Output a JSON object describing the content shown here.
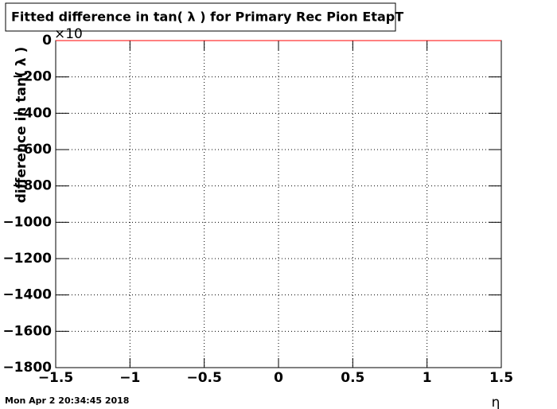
{
  "chart_data": {
    "type": "line",
    "title": "Fitted difference in tan( λ ) for Primary Rec Pion EtapT",
    "x_label": "η",
    "y_label": "difference  in tan( λ )",
    "y_exponent_label": "×10",
    "timestamp": "Mon Apr  2 20:34:45 2018",
    "x": [
      -1.5,
      1.5
    ],
    "series": [
      {
        "color": "#ff0000",
        "values": [
          0,
          0
        ]
      }
    ],
    "xlim": [
      -1.5,
      1.5
    ],
    "ylim": [
      -1800,
      0
    ],
    "xticks": [
      {
        "value": -1.5,
        "label": "−1.5"
      },
      {
        "value": -1,
        "label": "−1"
      },
      {
        "value": -0.5,
        "label": "−0.5"
      },
      0,
      0.5,
      1,
      1.5
    ],
    "yticks": [
      0,
      {
        "value": -200,
        "label": "−200"
      },
      {
        "value": -400,
        "label": "−400"
      },
      {
        "value": -600,
        "label": "−600"
      },
      {
        "value": -800,
        "label": "−800"
      },
      {
        "value": -1000,
        "label": "−1000"
      },
      {
        "value": -1200,
        "label": "−1200"
      },
      {
        "value": -1400,
        "label": "−1400"
      },
      {
        "value": -1600,
        "label": "−1600"
      },
      {
        "value": -1800,
        "label": "−1800"
      }
    ],
    "grid": true
  }
}
